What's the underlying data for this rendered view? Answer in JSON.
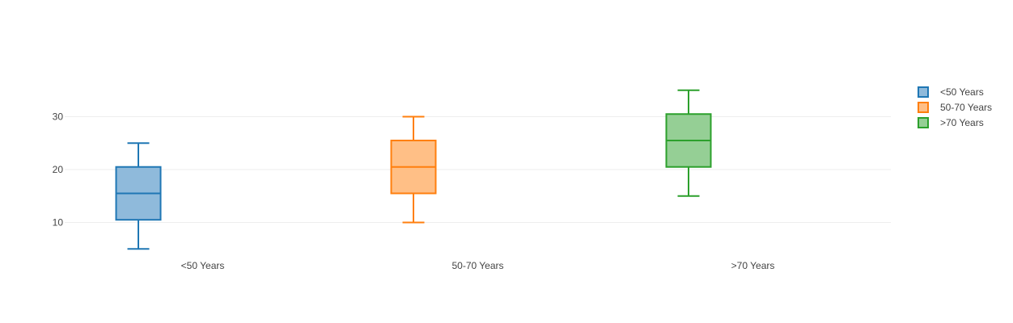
{
  "chart_data": {
    "type": "box",
    "categories": [
      "<50 Years",
      "50-70 Years",
      ">70 Years"
    ],
    "series": [
      {
        "name": "<50 Years",
        "category": "<50 Years",
        "min": 5,
        "q1": 10.5,
        "median": 15.5,
        "q3": 20.5,
        "max": 25,
        "color": "#1f77b4",
        "fill": "#8fbadb"
      },
      {
        "name": "50-70 Years",
        "category": "50-70 Years",
        "min": 10,
        "q1": 15.5,
        "median": 20.5,
        "q3": 25.5,
        "max": 30,
        "color": "#ff7f0e",
        "fill": "#ffbf86"
      },
      {
        "name": ">70 Years",
        "category": ">70 Years",
        "min": 15,
        "q1": 20.5,
        "median": 25.5,
        "q3": 30.5,
        "max": 35,
        "color": "#2ca02c",
        "fill": "#95cf95"
      }
    ],
    "yticks": [
      10,
      20,
      30
    ],
    "ylim": [
      3.2,
      36.8
    ],
    "grid": true,
    "legend_position": "top-right"
  }
}
